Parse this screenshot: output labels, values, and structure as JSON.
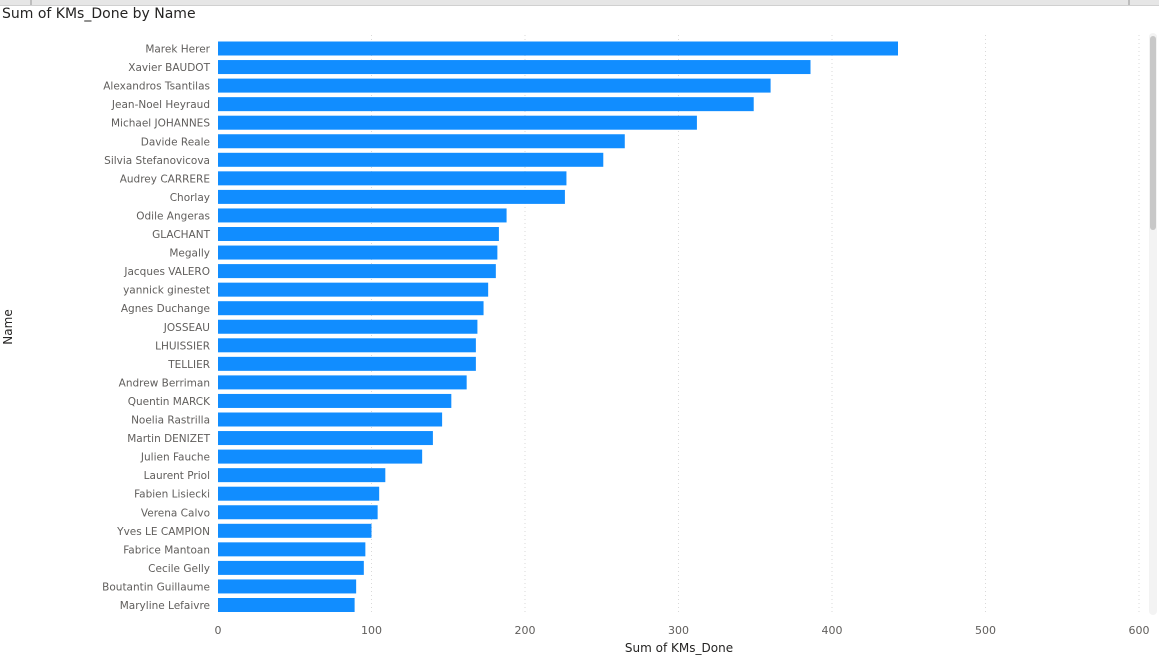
{
  "visual": {
    "title": "Sum of KMs_Done by Name"
  },
  "chart_data": {
    "type": "bar",
    "orientation": "horizontal",
    "title": "Sum of KMs_Done by Name",
    "xlabel": "Sum of KMs_Done",
    "ylabel": "Name",
    "xlim": [
      0,
      600
    ],
    "xticks": [
      "0",
      "100",
      "200",
      "300",
      "400",
      "500",
      "600"
    ],
    "grid": "vertical dotted",
    "bar_color": "#118DFF",
    "categories": [
      "Marek Herer",
      "Xavier BAUDOT",
      "Alexandros Tsantilas",
      "Jean-Noel Heyraud",
      "Michael JOHANNES",
      "Davide Reale",
      "Silvia Stefanovicova",
      "Audrey CARRERE",
      "Chorlay",
      "Odile Angeras",
      "GLACHANT",
      "Megally",
      "Jacques VALERO",
      "yannick ginestet",
      "Agnes Duchange",
      "JOSSEAU",
      "LHUISSIER",
      "TELLIER",
      "Andrew Berriman",
      "Quentin MARCK",
      "Noelia Rastrilla",
      "Martin DENIZET",
      "Julien Fauche",
      "Laurent Priol",
      "Fabien Lisiecki",
      "Verena Calvo",
      "Yves LE CAMPION",
      "Fabrice Mantoan",
      "Cecile Gelly",
      "Boutantin Guillaume",
      "Maryline Lefaivre"
    ],
    "values": [
      443,
      386,
      360,
      349,
      312,
      265,
      251,
      227,
      226,
      188,
      183,
      182,
      181,
      176,
      173,
      169,
      168,
      168,
      162,
      152,
      146,
      140,
      133,
      109,
      105,
      104,
      100,
      96,
      95,
      90,
      89
    ]
  },
  "scrollbar": {
    "position_fraction": 0.0
  }
}
